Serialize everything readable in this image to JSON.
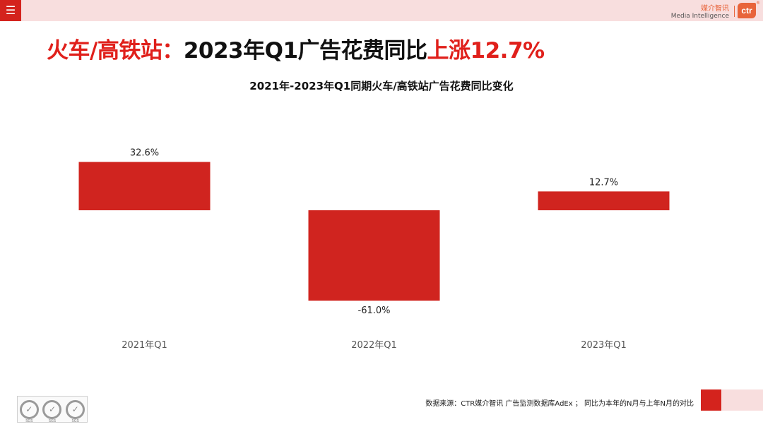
{
  "menu_icon": "menu-icon",
  "brand": {
    "cn": "媒介智讯",
    "en": "Media Intelligence",
    "logo": "ctr",
    "registered": "®"
  },
  "headline": {
    "prefix": "火车/高铁站：",
    "middle": "2023年Q1广告花费同比",
    "highlight": "上涨12.7%"
  },
  "colors": {
    "accent": "#d4231d",
    "headline_red": "#e0201b",
    "bar": "#d0241f",
    "pink": "#f8dede",
    "brand_orange": "#e8643b"
  },
  "chart_data": {
    "type": "bar",
    "title": "2021年-2023年Q1同期火车/高铁站广告花费同比变化",
    "categories": [
      "2021年Q1",
      "2022年Q1",
      "2023年Q1"
    ],
    "values": [
      32.6,
      -61.0,
      12.7
    ],
    "data_labels": [
      "32.6%",
      "-61.0%",
      "12.7%"
    ],
    "value_unit": "%",
    "grid": false,
    "legend": "none"
  },
  "source_note": "数据来源：CTR媒介智讯 广告监测数据库AdEx ； 同比为本年的N月与上年N月的对比",
  "certification": {
    "seals": [
      "SGS",
      "SGS",
      "SGS"
    ]
  }
}
